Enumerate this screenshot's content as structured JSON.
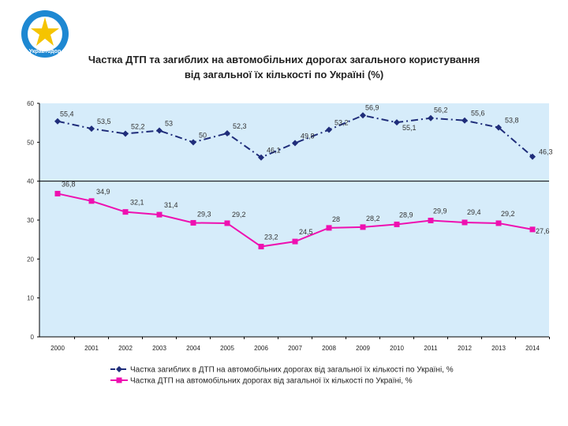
{
  "logo": {
    "text": "Укравтодор",
    "icon": "star-emblem-icon",
    "colors": {
      "ring": "#1e88d2",
      "star": "#f5c400",
      "inner": "#ffffff"
    }
  },
  "colors": {
    "plot_bg": "#d6ecfa",
    "series1": "#1f2d7a",
    "series2": "#ee10b0",
    "axis": "#000000"
  },
  "chart_data": {
    "type": "line",
    "title": "Частка ДТП та загиблих на автомобільних дорогах загального користування",
    "subtitle": "від загальної їх кількості по Україні (%)",
    "x": [
      "2000",
      "2001",
      "2002",
      "2003",
      "2004",
      "2005",
      "2006",
      "2007",
      "2008",
      "2009",
      "2010",
      "2011",
      "2012",
      "2013",
      "2014"
    ],
    "xlabel": "",
    "ylabel": "",
    "ylim": [
      0,
      60
    ],
    "yticks": [
      "0",
      "10",
      "20",
      "30",
      "40",
      "50",
      "60"
    ],
    "reference_line": 40,
    "series": [
      {
        "name": "Частка загиблих в ДТП на автомобільних дорогах від загальної їх кількості по Україні, %",
        "values": [
          55.4,
          53.5,
          52.2,
          53,
          50,
          52.3,
          46.1,
          49.8,
          53.2,
          56.9,
          55.1,
          56.2,
          55.6,
          53.8,
          46.3
        ],
        "labels": [
          "55,4",
          "53,5",
          "52,2",
          "53",
          "50",
          "52,3",
          "46,1",
          "49,8",
          "53,2",
          "56,9",
          "55,1",
          "56,2",
          "55,6",
          "53,8",
          "46,3"
        ]
      },
      {
        "name": "Частка ДТП на автомобільних дорогах від загальної їх кількості по Україні, %",
        "values": [
          36.8,
          34.9,
          32.1,
          31.4,
          29.3,
          29.2,
          23.2,
          24.5,
          28,
          28.2,
          28.9,
          29.9,
          29.4,
          29.2,
          27.6
        ],
        "labels": [
          "36,8",
          "34,9",
          "32,1",
          "31,4",
          "29,3",
          "29,2",
          "23,2",
          "24,5",
          "28",
          "28,2",
          "28,9",
          "29,9",
          "29,4",
          "29,2",
          "27,6"
        ]
      }
    ],
    "legend_position": "bottom"
  }
}
